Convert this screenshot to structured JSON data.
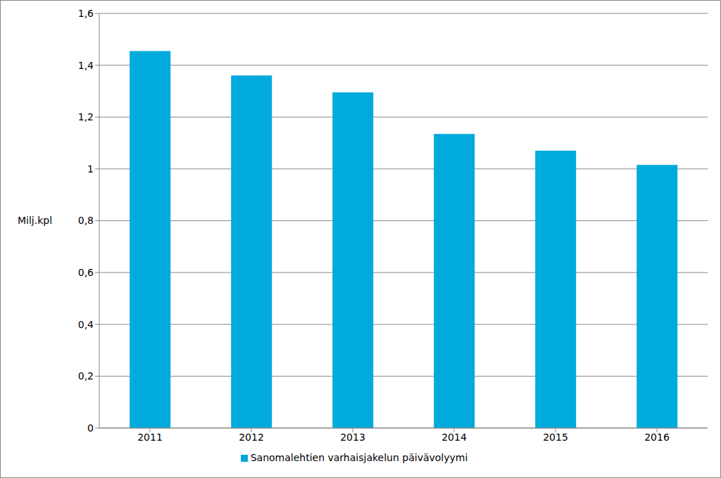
{
  "chart_data": {
    "type": "bar",
    "categories": [
      "2011",
      "2012",
      "2013",
      "2014",
      "2015",
      "2016"
    ],
    "y_label": "Milj.kpl",
    "series": [
      {
        "name": "Sanomalehtien varhaisjakelun päivävolyymi",
        "color": "#00aadd",
        "values": [
          1.455,
          1.36,
          1.295,
          1.135,
          1.07,
          1.015
        ]
      }
    ],
    "ylim": [
      0,
      1.6
    ],
    "yticks": [
      0,
      {
        "value": 0.2,
        "label": "0,2"
      },
      {
        "value": 0.4,
        "label": "0,4"
      },
      {
        "value": 0.6,
        "label": "0,6"
      },
      {
        "value": 0.8,
        "label": "0,8"
      },
      1,
      {
        "value": 1.2,
        "label": "1,2"
      },
      {
        "value": 1.4,
        "label": "1,4"
      },
      {
        "value": 1.6,
        "label": "1,6"
      }
    ],
    "grid": true,
    "legend": "bottom"
  }
}
